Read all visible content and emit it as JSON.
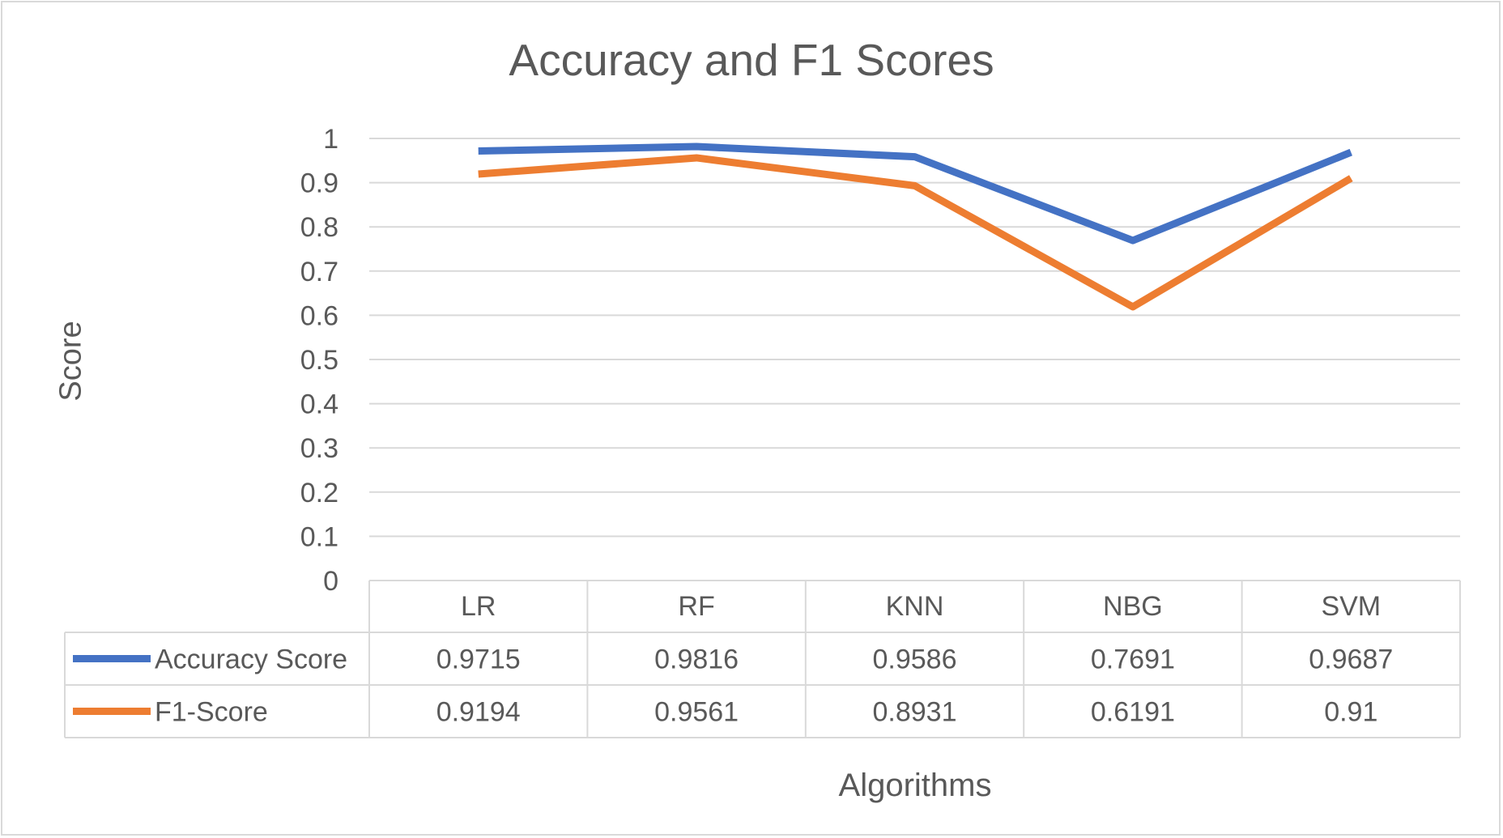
{
  "chart_data": {
    "type": "line",
    "title": "Accuracy and F1 Scores",
    "xlabel": "Algorithms",
    "ylabel": "Score",
    "categories": [
      "LR",
      "RF",
      "KNN",
      "NBG",
      "SVM"
    ],
    "ylim": [
      0,
      1
    ],
    "yticks": [
      "0",
      "0.1",
      "0.2",
      "0.3",
      "0.4",
      "0.5",
      "0.6",
      "0.7",
      "0.8",
      "0.9",
      "1"
    ],
    "grid": true,
    "legend": "data-table",
    "series": [
      {
        "name": "Accuracy Score",
        "color": "#4472c4",
        "values": [
          0.9715,
          0.9816,
          0.9586,
          0.7691,
          0.9687
        ],
        "labels": [
          "0.9715",
          "0.9816",
          "0.9586",
          "0.7691",
          "0.9687"
        ]
      },
      {
        "name": "F1-Score",
        "color": "#ed7d31",
        "values": [
          0.9194,
          0.9561,
          0.8931,
          0.6191,
          0.91
        ],
        "labels": [
          "0.9194",
          "0.9561",
          "0.8931",
          "0.6191",
          "0.91"
        ]
      }
    ]
  }
}
